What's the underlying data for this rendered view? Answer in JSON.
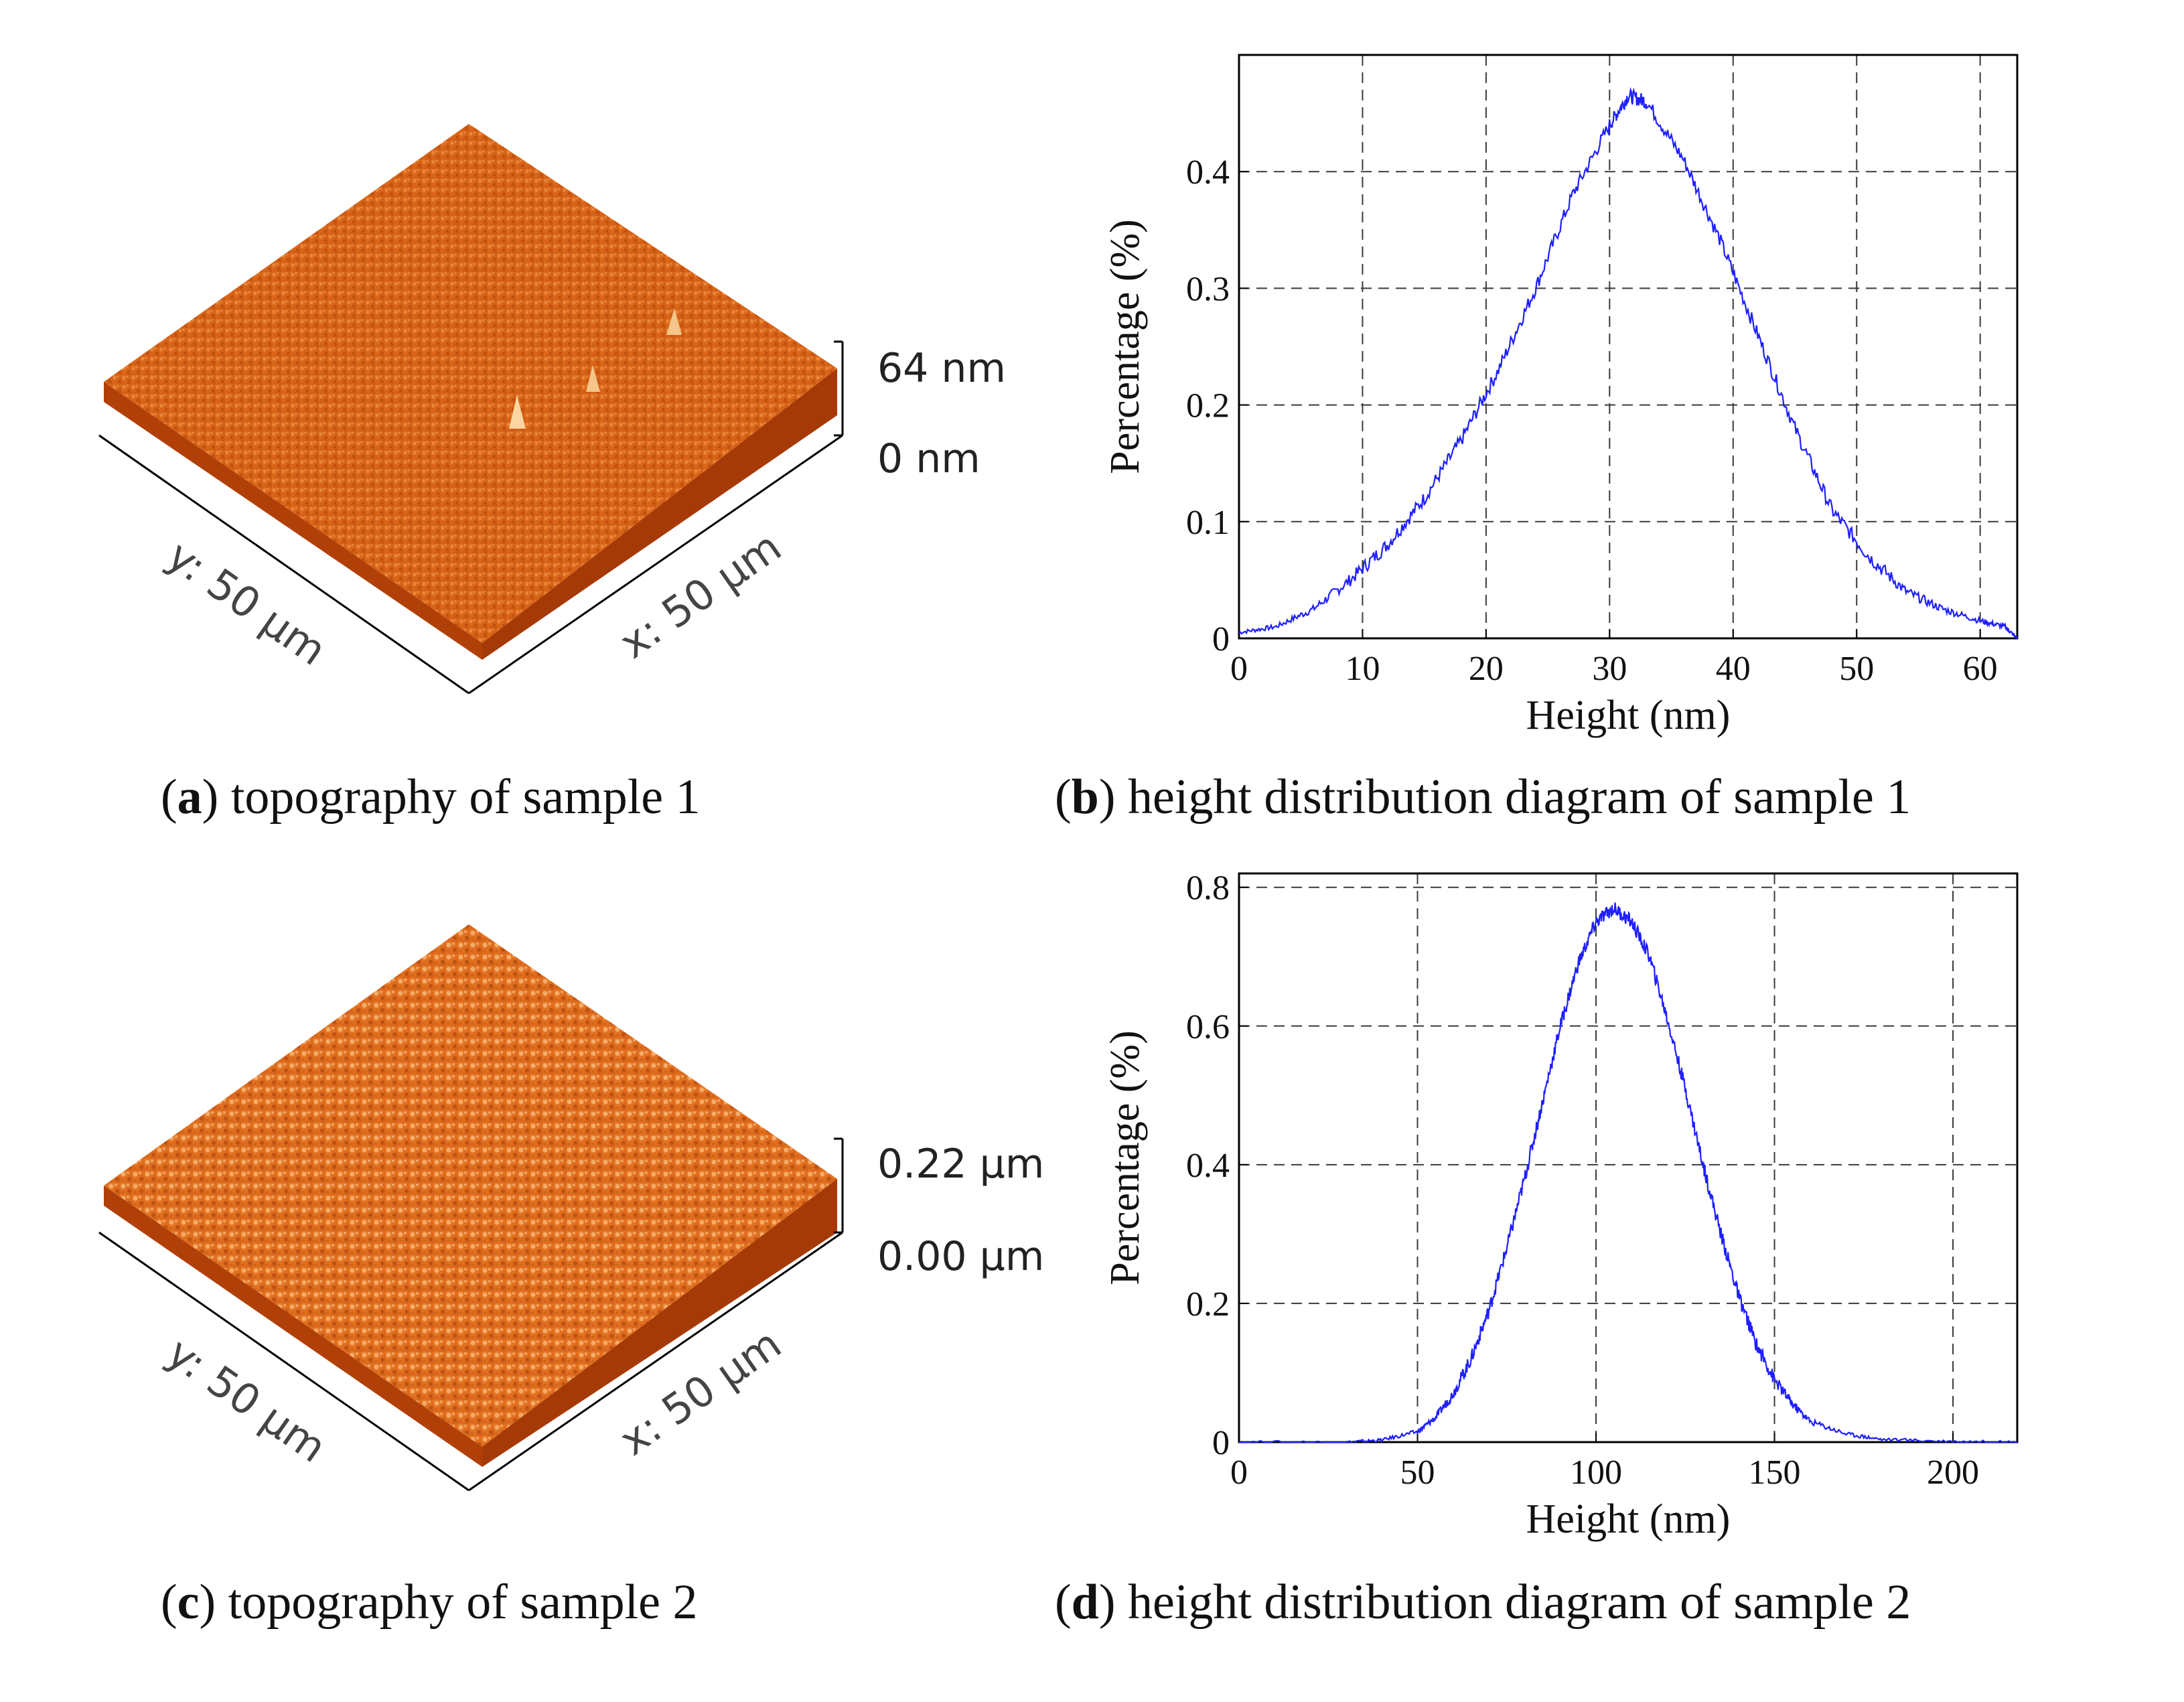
{
  "colors": {
    "line": "#1f1fff",
    "axis": "#000000",
    "grid": "#3a3a3a",
    "surface_dark": "#b43c08",
    "surface_mid": "#e26a1a",
    "surface_light": "#f8c88a"
  },
  "panels": {
    "a": {
      "letter": "a",
      "caption": "topography of sample 1",
      "scale_top": "64 nm",
      "scale_bottom": "0 nm",
      "y_axis_label": "y: 50 µm",
      "x_axis_label": "x: 50 µm"
    },
    "b": {
      "letter": "b",
      "caption": "height distribution diagram of sample 1"
    },
    "c": {
      "letter": "c",
      "caption": "topography of sample 2",
      "scale_top": "0.22 µm",
      "scale_bottom": "0.00 µm",
      "y_axis_label": "y: 50 µm",
      "x_axis_label": "x: 50 µm"
    },
    "d": {
      "letter": "d",
      "caption": "height distribution diagram of sample 2"
    }
  },
  "chart_data": [
    {
      "id": "b",
      "type": "line",
      "title": "",
      "xlabel": "Height (nm)",
      "ylabel": "Percentage (%)",
      "xlim": [
        0,
        63
      ],
      "ylim": [
        0,
        0.5
      ],
      "xticks": [
        0,
        10,
        20,
        30,
        40,
        50,
        60
      ],
      "yticks": [
        0,
        0.1,
        0.2,
        0.3,
        0.4
      ],
      "ytick_labels": [
        "0",
        "0.1",
        "0.2",
        "0.3",
        "0.4"
      ],
      "grid": true,
      "series": [
        {
          "name": "sample 1",
          "x": [
            0,
            3,
            6,
            9,
            12,
            15,
            18,
            21,
            24,
            27,
            30,
            31.5,
            33,
            36,
            39,
            42,
            45,
            48,
            51,
            54,
            57,
            60,
            62,
            63
          ],
          "values": [
            0.005,
            0.01,
            0.025,
            0.05,
            0.08,
            0.12,
            0.17,
            0.23,
            0.3,
            0.38,
            0.44,
            0.465,
            0.46,
            0.41,
            0.34,
            0.26,
            0.18,
            0.11,
            0.07,
            0.04,
            0.025,
            0.015,
            0.01,
            0.0
          ]
        }
      ]
    },
    {
      "id": "d",
      "type": "line",
      "title": "",
      "xlabel": "Height (nm)",
      "ylabel": "Percentage (%)",
      "xlim": [
        0,
        218
      ],
      "ylim": [
        0,
        0.82
      ],
      "xticks": [
        0,
        50,
        100,
        150,
        200
      ],
      "yticks": [
        0,
        0.2,
        0.4,
        0.6,
        0.8
      ],
      "ytick_labels": [
        "0",
        "0.2",
        "0.4",
        "0.6",
        "0.8"
      ],
      "grid": true,
      "series": [
        {
          "name": "sample 2",
          "x": [
            0,
            30,
            40,
            50,
            55,
            60,
            65,
            70,
            75,
            80,
            85,
            90,
            95,
            100,
            105,
            110,
            115,
            120,
            125,
            130,
            135,
            140,
            145,
            150,
            155,
            160,
            170,
            180,
            200,
            218
          ],
          "values": [
            0.0,
            0.0,
            0.003,
            0.015,
            0.035,
            0.07,
            0.12,
            0.19,
            0.28,
            0.38,
            0.49,
            0.6,
            0.69,
            0.75,
            0.77,
            0.75,
            0.7,
            0.61,
            0.51,
            0.4,
            0.3,
            0.21,
            0.14,
            0.09,
            0.055,
            0.03,
            0.012,
            0.004,
            0.001,
            0.0
          ]
        }
      ]
    }
  ]
}
